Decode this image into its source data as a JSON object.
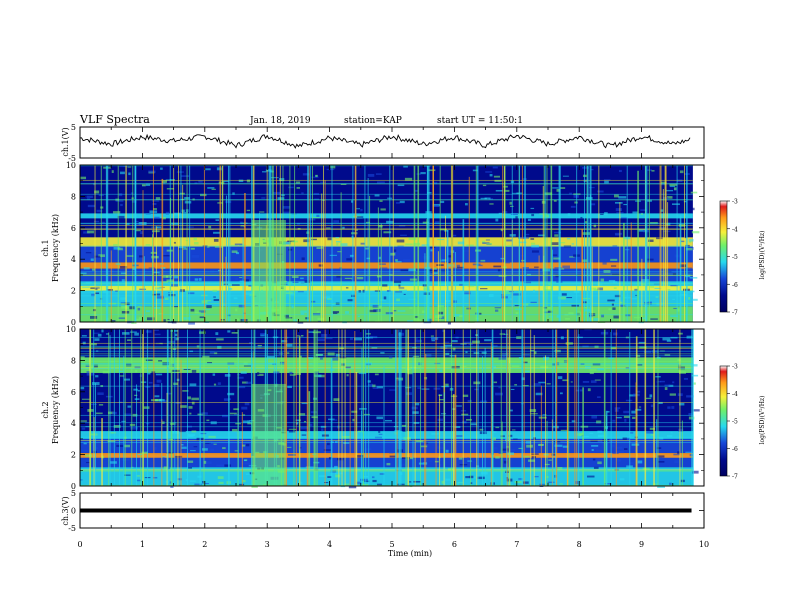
{
  "header": {
    "title": "VLF Spectra",
    "date": "Jan. 18, 2019",
    "station": "station=KAP",
    "start": "start UT =  11:50:1"
  },
  "colors": {
    "background_floor": "#000a8c",
    "cool_band": "#1747d8",
    "cyan": "#26d9ee",
    "green": "#6ff06a",
    "yellow": "#f6f03a",
    "orange": "#ff9a1a",
    "red": "#e01b1b",
    "trace": "#000000"
  },
  "chart_data": [
    {
      "type": "line",
      "panel": "ch1-waveform",
      "ylabel": "ch.1(V)",
      "ylim": [
        -5,
        5
      ],
      "y_ticks": [
        "5",
        "-5"
      ],
      "xlim": [
        0,
        10
      ],
      "x": [
        0,
        0.5,
        1,
        1.5,
        2,
        2.5,
        3,
        3.5,
        4,
        4.5,
        5,
        5.5,
        6,
        6.5,
        7,
        7.5,
        8,
        8.5,
        9,
        9.5,
        9.8
      ],
      "y": [
        1.5,
        -0.5,
        1.8,
        0.5,
        2.0,
        -1.0,
        2.2,
        -1.2,
        1.5,
        -0.8,
        2.0,
        -0.5,
        1.8,
        -1.0,
        2.2,
        -0.5,
        1.8,
        -1.2,
        2.0,
        -0.5,
        1.0
      ]
    },
    {
      "type": "heatmap",
      "panel": "ch1-spectrogram",
      "ylabel": "ch.1\nFrequency (kHz)",
      "ylabel_lines": [
        "ch.1",
        "Frequency (kHz)"
      ],
      "xlim": [
        0,
        10
      ],
      "ylim": [
        0,
        10
      ],
      "y_ticks": [
        "0",
        "2",
        "4",
        "6",
        "8",
        "10"
      ],
      "colorbar": {
        "label": "log(PSD)(V²/Hz)",
        "range": [
          -7,
          -3
        ],
        "ticks": [
          "-3",
          "-4",
          "-5",
          "-6",
          "-7"
        ]
      },
      "bands_khz": [
        {
          "from": 0.0,
          "to": 1.0,
          "level": "green"
        },
        {
          "from": 1.0,
          "to": 2.6,
          "level": "cyan"
        },
        {
          "from": 2.0,
          "to": 2.3,
          "level": "yellow"
        },
        {
          "from": 2.6,
          "to": 3.4,
          "level": "cool"
        },
        {
          "from": 3.4,
          "to": 3.8,
          "level": "orange"
        },
        {
          "from": 3.8,
          "to": 4.8,
          "level": "cool"
        },
        {
          "from": 4.8,
          "to": 5.4,
          "level": "yellow"
        },
        {
          "from": 5.4,
          "to": 6.6,
          "level": "floor"
        },
        {
          "from": 6.6,
          "to": 6.9,
          "level": "cyan"
        },
        {
          "from": 6.9,
          "to": 10.0,
          "level": "floor"
        }
      ],
      "burst_minutes": [
        2.75,
        3.3
      ]
    },
    {
      "type": "heatmap",
      "panel": "ch2-spectrogram",
      "ylabel": "ch.2\nFrequency (kHz)",
      "ylabel_lines": [
        "ch.2",
        "Frequency (kHz)"
      ],
      "xlim": [
        0,
        10
      ],
      "ylim": [
        0,
        10
      ],
      "y_ticks": [
        "0",
        "2",
        "4",
        "6",
        "8",
        "10"
      ],
      "colorbar": {
        "label": "log(PSD)(V²/Hz)",
        "range": [
          -7,
          -3
        ],
        "ticks": [
          "-3",
          "-4",
          "-5",
          "-6",
          "-7"
        ]
      },
      "bands_khz": [
        {
          "from": 0.0,
          "to": 1.2,
          "level": "cyan"
        },
        {
          "from": 1.2,
          "to": 2.0,
          "level": "cool"
        },
        {
          "from": 1.8,
          "to": 2.1,
          "level": "orange"
        },
        {
          "from": 2.1,
          "to": 3.0,
          "level": "cool"
        },
        {
          "from": 3.0,
          "to": 3.5,
          "level": "cyan"
        },
        {
          "from": 3.5,
          "to": 7.0,
          "level": "floor"
        },
        {
          "from": 7.2,
          "to": 8.2,
          "level": "green"
        },
        {
          "from": 8.2,
          "to": 10.0,
          "level": "floor"
        }
      ],
      "burst_minutes": [
        2.75,
        3.3
      ]
    },
    {
      "type": "line",
      "panel": "ch3-waveform",
      "ylabel": "ch.3(V)",
      "ylim": [
        -5,
        5
      ],
      "y_ticks": [
        "5",
        "0",
        "-5"
      ],
      "xlim": [
        0,
        10
      ],
      "x": [
        0,
        9.8
      ],
      "y": [
        0,
        0
      ]
    }
  ],
  "x_axis": {
    "label": "Time (min)",
    "ticks": [
      "0",
      "1",
      "2",
      "3",
      "4",
      "5",
      "6",
      "7",
      "8",
      "9",
      "10"
    ]
  }
}
